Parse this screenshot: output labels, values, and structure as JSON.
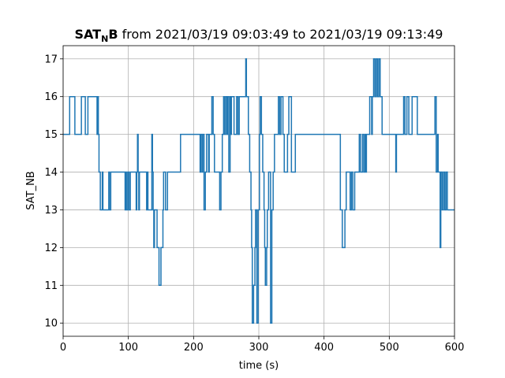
{
  "chart_data": {
    "type": "line",
    "title": {
      "main": "SAT",
      "subscript": "N",
      "main_end": "B",
      "rest": " from 2021/03/19 09:03:49 to 2021/03/19 09:13:49"
    },
    "xlabel": "time (s)",
    "ylabel": "SAT_NB",
    "xlim": [
      0,
      600
    ],
    "ylim": [
      9.65,
      17.35
    ],
    "xticks": [
      0,
      100,
      200,
      300,
      400,
      500,
      600
    ],
    "yticks": [
      10,
      11,
      12,
      13,
      14,
      15,
      16,
      17
    ],
    "grid": true,
    "line_style": "steps-post",
    "series": [
      {
        "color": "#1f77b4",
        "points": [
          [
            0,
            15
          ],
          [
            10,
            16
          ],
          [
            18,
            15
          ],
          [
            28,
            16
          ],
          [
            34,
            15
          ],
          [
            38,
            16
          ],
          [
            52,
            15
          ],
          [
            53,
            16
          ],
          [
            54,
            15
          ],
          [
            55,
            14
          ],
          [
            57,
            13
          ],
          [
            60,
            14
          ],
          [
            61,
            13
          ],
          [
            70,
            14
          ],
          [
            71,
            13
          ],
          [
            73,
            14
          ],
          [
            95,
            13
          ],
          [
            96,
            14
          ],
          [
            97,
            13
          ],
          [
            99,
            14
          ],
          [
            101,
            13
          ],
          [
            103,
            14
          ],
          [
            112,
            13
          ],
          [
            113,
            14
          ],
          [
            114,
            15
          ],
          [
            115,
            14
          ],
          [
            116,
            13
          ],
          [
            117,
            14
          ],
          [
            128,
            13
          ],
          [
            129,
            14
          ],
          [
            130,
            13
          ],
          [
            136,
            15
          ],
          [
            137,
            14
          ],
          [
            138,
            13
          ],
          [
            139,
            12
          ],
          [
            140,
            13
          ],
          [
            144,
            12
          ],
          [
            147,
            11
          ],
          [
            150,
            12
          ],
          [
            153,
            13
          ],
          [
            154,
            14
          ],
          [
            157,
            13
          ],
          [
            160,
            14
          ],
          [
            170,
            14
          ],
          [
            180,
            15
          ],
          [
            210,
            14
          ],
          [
            211,
            15
          ],
          [
            213,
            14
          ],
          [
            214,
            15
          ],
          [
            216,
            13
          ],
          [
            218,
            14
          ],
          [
            220,
            15
          ],
          [
            223,
            14
          ],
          [
            224,
            15
          ],
          [
            228,
            16
          ],
          [
            230,
            15
          ],
          [
            232,
            14
          ],
          [
            240,
            13
          ],
          [
            242,
            14
          ],
          [
            244,
            15
          ],
          [
            246,
            16
          ],
          [
            247,
            15
          ],
          [
            249,
            16
          ],
          [
            251,
            15
          ],
          [
            252,
            16
          ],
          [
            254,
            14
          ],
          [
            256,
            16
          ],
          [
            257,
            15
          ],
          [
            258,
            16
          ],
          [
            262,
            15
          ],
          [
            266,
            16
          ],
          [
            268,
            15
          ],
          [
            270,
            16
          ],
          [
            280,
            17
          ],
          [
            281,
            16
          ],
          [
            284,
            15
          ],
          [
            286,
            14
          ],
          [
            288,
            13
          ],
          [
            289,
            12
          ],
          [
            290,
            10
          ],
          [
            292,
            11
          ],
          [
            294,
            12
          ],
          [
            295,
            13
          ],
          [
            297,
            10
          ],
          [
            299,
            13
          ],
          [
            301,
            15
          ],
          [
            302,
            16
          ],
          [
            304,
            15
          ],
          [
            306,
            14
          ],
          [
            308,
            13
          ],
          [
            309,
            12
          ],
          [
            310,
            11
          ],
          [
            312,
            12
          ],
          [
            313,
            13
          ],
          [
            315,
            14
          ],
          [
            318,
            10
          ],
          [
            320,
            13
          ],
          [
            322,
            14
          ],
          [
            324,
            15
          ],
          [
            330,
            16
          ],
          [
            332,
            15
          ],
          [
            334,
            16
          ],
          [
            337,
            15
          ],
          [
            339,
            14
          ],
          [
            344,
            15
          ],
          [
            346,
            16
          ],
          [
            350,
            14
          ],
          [
            356,
            15
          ],
          [
            425,
            13
          ],
          [
            428,
            12
          ],
          [
            432,
            13
          ],
          [
            434,
            14
          ],
          [
            440,
            13
          ],
          [
            442,
            14
          ],
          [
            444,
            13
          ],
          [
            447,
            14
          ],
          [
            454,
            15
          ],
          [
            456,
            14
          ],
          [
            459,
            15
          ],
          [
            461,
            14
          ],
          [
            463,
            15
          ],
          [
            464,
            14
          ],
          [
            465,
            15
          ],
          [
            470,
            16
          ],
          [
            473,
            15
          ],
          [
            474,
            16
          ],
          [
            476,
            17
          ],
          [
            478,
            16
          ],
          [
            480,
            17
          ],
          [
            482,
            16
          ],
          [
            484,
            17
          ],
          [
            486,
            16
          ],
          [
            489,
            15
          ],
          [
            510,
            14
          ],
          [
            511,
            15
          ],
          [
            522,
            16
          ],
          [
            524,
            15
          ],
          [
            527,
            16
          ],
          [
            530,
            15
          ],
          [
            535,
            16
          ],
          [
            543,
            15
          ],
          [
            570,
            16
          ],
          [
            572,
            14
          ],
          [
            574,
            15
          ],
          [
            575,
            14
          ],
          [
            578,
            12
          ],
          [
            579,
            14
          ],
          [
            581,
            13
          ],
          [
            583,
            14
          ],
          [
            585,
            13
          ],
          [
            587,
            14
          ],
          [
            589,
            13
          ],
          [
            600,
            13
          ]
        ]
      }
    ]
  }
}
